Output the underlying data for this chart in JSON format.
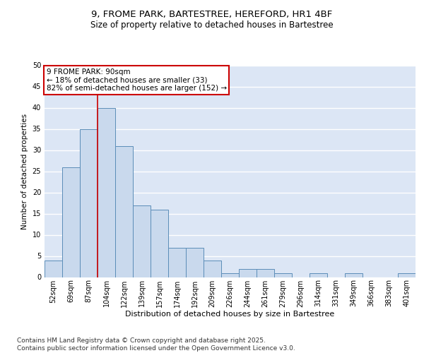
{
  "title1": "9, FROME PARK, BARTESTREE, HEREFORD, HR1 4BF",
  "title2": "Size of property relative to detached houses in Bartestree",
  "xlabel": "Distribution of detached houses by size in Bartestree",
  "ylabel": "Number of detached properties",
  "categories": [
    "52sqm",
    "69sqm",
    "87sqm",
    "104sqm",
    "122sqm",
    "139sqm",
    "157sqm",
    "174sqm",
    "192sqm",
    "209sqm",
    "226sqm",
    "244sqm",
    "261sqm",
    "279sqm",
    "296sqm",
    "314sqm",
    "331sqm",
    "349sqm",
    "366sqm",
    "383sqm",
    "401sqm"
  ],
  "values": [
    4,
    26,
    35,
    40,
    31,
    17,
    16,
    7,
    7,
    4,
    1,
    2,
    2,
    1,
    0,
    1,
    0,
    1,
    0,
    0,
    1
  ],
  "bar_color": "#c9d9ed",
  "bar_edge_color": "#5b8db8",
  "background_color": "#dce6f5",
  "grid_color": "#ffffff",
  "annotation_box_color": "#cc0000",
  "vline_color": "#cc0000",
  "vline_x_index": 2.5,
  "annotation_title": "9 FROME PARK: 90sqm",
  "annotation_line1": "← 18% of detached houses are smaller (33)",
  "annotation_line2": "82% of semi-detached houses are larger (152) →",
  "ylim": [
    0,
    50
  ],
  "yticks": [
    0,
    5,
    10,
    15,
    20,
    25,
    30,
    35,
    40,
    45,
    50
  ],
  "footer": "Contains HM Land Registry data © Crown copyright and database right 2025.\nContains public sector information licensed under the Open Government Licence v3.0.",
  "title1_fontsize": 9.5,
  "title2_fontsize": 8.5,
  "xlabel_fontsize": 8,
  "ylabel_fontsize": 7.5,
  "tick_fontsize": 7,
  "annotation_fontsize": 7.5,
  "footer_fontsize": 6.5
}
